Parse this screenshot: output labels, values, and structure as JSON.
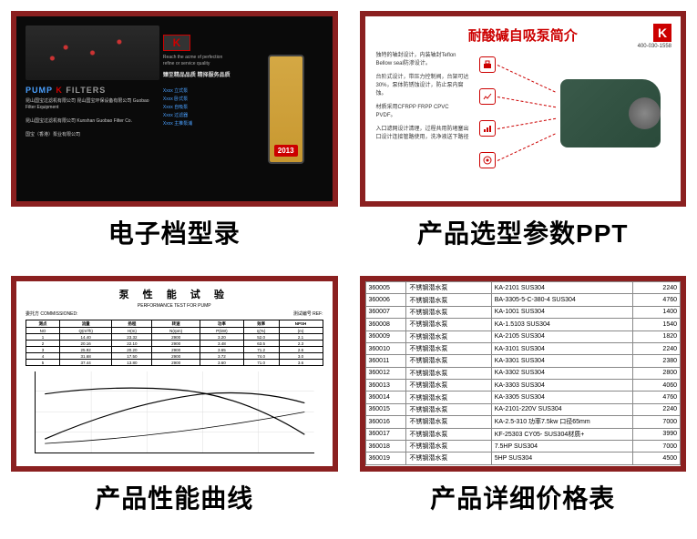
{
  "captions": {
    "panel1": "电子档型录",
    "panel2": "产品选型参数PPT",
    "panel3": "产品性能曲线",
    "panel4": "产品详细价格表"
  },
  "panel1": {
    "logo_pump": "PUMP",
    "logo_k": "K",
    "logo_filters": "FILTERS",
    "k_badge": "K",
    "tagline1": "Reach the acme of perfection",
    "tagline2": "refine or service quality",
    "cn_slogan": "臻至精品品质 精择服务品质",
    "year": "2013",
    "products": [
      "Xxxx 立式泵",
      "Xxxx 卧式泵",
      "Xxxx 自吸泵",
      "Xxxx 过滤器",
      "Xxxx 主推泵浦"
    ],
    "company_blocks": [
      "昆山国宝过滤机有限公司\n昆山国宝环保设备有限公司\nGuobao Filter Equipment",
      "昆山国宝过滤机有限公司\nKunshan Guobao Filter Co.",
      "国宝（香港）泵业有限公司"
    ]
  },
  "panel2": {
    "title": "耐酸碱自吸泵简介",
    "k_badge": "K",
    "phone": "400-030-1558",
    "desc1": "独特的轴封设计，内装轴封Teflon Bellow seal防渗设计。",
    "desc2": "台阶式设计，带压力控制阀，台架可达30%，泵体防锈蚀设计，防止泵内腐蚀。",
    "desc3": "材质采用CFRPP FRPP CPVC PVDF。",
    "desc4": "入口滤网设计清理，过程共用防堵塞出口设计连接管路使用，洗净液送下路径",
    "pump_color": "#2a4a3a",
    "accent_color": "#cc0000"
  },
  "panel3": {
    "title": "泵 性 能 试 验",
    "subtitle": "PERFORMANCE TEST FOR PUMP",
    "left_info": "委托方 COMMISSIONED:",
    "right_info": "测试编号 REF:",
    "table_headers": [
      "测点",
      "流量",
      "扬程",
      "转速",
      "功率",
      "效率",
      "NPSH"
    ],
    "table_sub": [
      "NO",
      "Q(m³/h)",
      "H(m)",
      "N(rpm)",
      "P(kW)",
      "η(%)",
      "(m)"
    ],
    "rows": [
      [
        "1",
        "14.40",
        "23.32",
        "2900",
        "3.20",
        "52.0",
        "2.1"
      ],
      [
        "2",
        "20.16",
        "22.10",
        "2900",
        "3.48",
        "63.5",
        "2.3"
      ],
      [
        "3",
        "25.92",
        "20.20",
        "2900",
        "3.65",
        "71.2",
        "2.6"
      ],
      [
        "4",
        "31.68",
        "17.50",
        "2900",
        "3.72",
        "74.0",
        "3.0"
      ],
      [
        "5",
        "37.44",
        "13.80",
        "2900",
        "3.60",
        "71.0",
        "3.6"
      ]
    ],
    "curve_color": "#000000",
    "grid_color": "#cccccc"
  },
  "panel4": {
    "rows": [
      [
        "360005",
        "不锈钢潜水泵",
        "KA-2101 SUS304",
        "2240"
      ],
      [
        "360006",
        "不锈钢潜水泵",
        "BA-3305-5-C-380-4 SUS304",
        "4760"
      ],
      [
        "360007",
        "不锈钢潜水泵",
        "KA-1001 SUS304",
        "1400"
      ],
      [
        "360008",
        "不锈钢潜水泵",
        "KA-1.5103 SUS304",
        "1540"
      ],
      [
        "360009",
        "不锈钢潜水泵",
        "KA-2105 SUS304",
        "1820"
      ],
      [
        "360010",
        "不锈钢潜水泵",
        "KA-3101 SUS304",
        "2240"
      ],
      [
        "360011",
        "不锈钢潜水泵",
        "KA-3301 SUS304",
        "2380"
      ],
      [
        "360012",
        "不锈钢潜水泵",
        "KA-3302 SUS304",
        "2800"
      ],
      [
        "360013",
        "不锈钢潜水泵",
        "KA-3303 SUS304",
        "4060"
      ],
      [
        "360014",
        "不锈钢潜水泵",
        "KA-3305 SUS304",
        "4760"
      ],
      [
        "360015",
        "不锈钢潜水泵",
        "KA-2101-220V SUS304",
        "2240"
      ],
      [
        "360016",
        "不锈钢潜水泵",
        "KA-2.5-310  功率7.5kw  口径65mm",
        "7000"
      ],
      [
        "360017",
        "不锈钢潜水泵",
        "KF-25303  CY05-  SUS304材质+",
        "3990"
      ],
      [
        "360018",
        "不锈钢潜水泵",
        "7.5HP  SUS304",
        "7000"
      ],
      [
        "360019",
        "不锈钢潜水泵",
        "5HP SUS304",
        "4500"
      ]
    ]
  }
}
